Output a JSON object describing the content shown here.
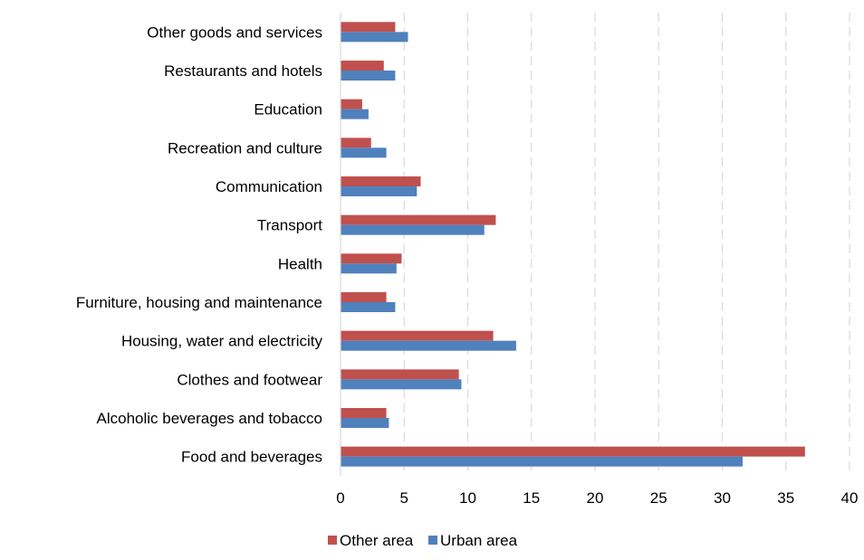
{
  "chart_data": {
    "type": "bar",
    "orientation": "horizontal",
    "title": "",
    "xlabel": "",
    "ylabel": "",
    "categories": [
      "Food and beverages",
      "Alcoholic beverages and tobacco",
      "Clothes and footwear",
      "Housing, water and electricity",
      "Furniture, housing and maintenance",
      "Health",
      "Transport",
      "Communication",
      "Recreation and culture",
      "Education",
      "Restaurants and hotels",
      "Other goods and services"
    ],
    "series": [
      {
        "name": "Other area",
        "color": "#c0504d",
        "values": [
          36.5,
          3.6,
          9.3,
          12.0,
          3.6,
          4.8,
          12.2,
          6.3,
          2.4,
          1.7,
          3.4,
          4.3
        ]
      },
      {
        "name": "Urban area",
        "color": "#4f81bd",
        "values": [
          31.6,
          3.8,
          9.5,
          13.8,
          4.3,
          4.4,
          11.3,
          6.0,
          3.6,
          2.2,
          4.3,
          5.3
        ]
      }
    ],
    "xlim": [
      0,
      40
    ],
    "x_ticks": [
      "0",
      "5",
      "10",
      "15",
      "20",
      "25",
      "30",
      "35",
      "40"
    ],
    "grid": "vertical dashed",
    "legend_position": "bottom"
  }
}
